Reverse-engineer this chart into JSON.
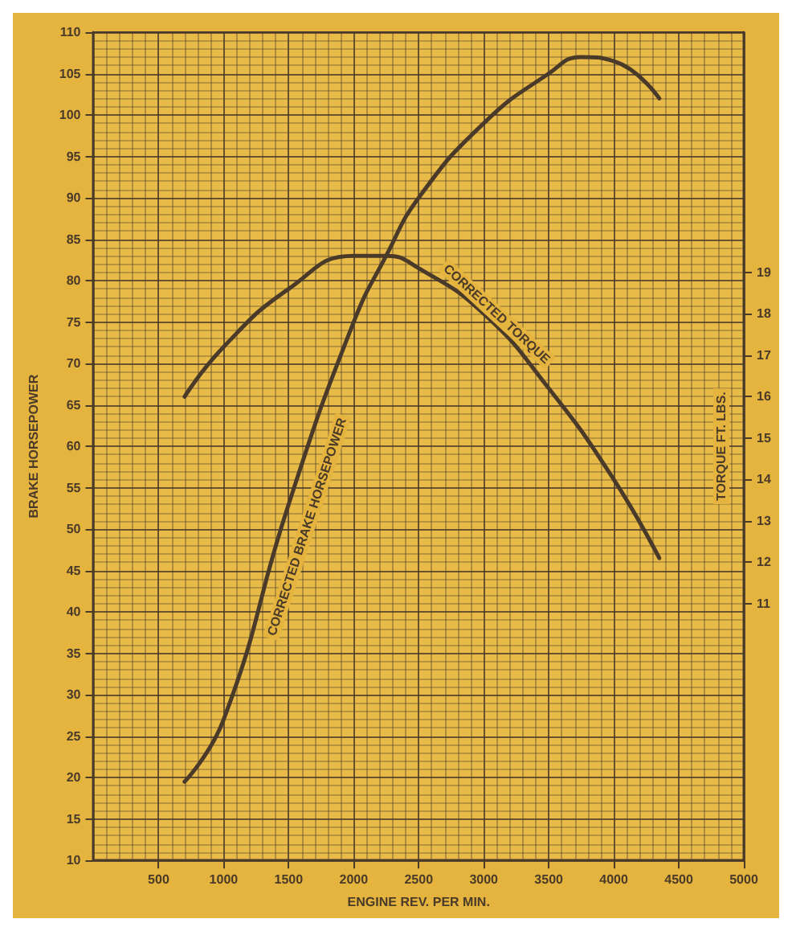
{
  "chart_data": {
    "type": "line",
    "xlabel": "ENGINE REV. PER MIN.",
    "ylabel": "BRAKE HORSEPOWER",
    "y2label": "TORQUE FT. LBS.",
    "xlim": [
      0,
      5000
    ],
    "xticks": [
      500,
      1000,
      1500,
      2000,
      2500,
      3000,
      3500,
      4000,
      4500,
      5000
    ],
    "ylim": [
      10,
      110
    ],
    "yticks": [
      10,
      15,
      20,
      25,
      30,
      35,
      40,
      45,
      50,
      55,
      60,
      65,
      70,
      75,
      80,
      85,
      90,
      95,
      100,
      105,
      110
    ],
    "y2lim": [
      4.8,
      24.8
    ],
    "y2ticks": [
      11,
      12,
      13,
      14,
      15,
      16,
      17,
      18,
      19
    ],
    "grid": true,
    "legend": false,
    "marker": "none",
    "line_style": "solid",
    "series": [
      {
        "name": "CORRECTED BRAKE HORSEPOWER",
        "color": "#4a3a2a",
        "x": [
          700,
          1000,
          1500,
          2000,
          2250,
          2500,
          3000,
          3500,
          3750,
          4000,
          4350
        ],
        "values": [
          19.5,
          27,
          53,
          75,
          83,
          90,
          99,
          105,
          107,
          106.5,
          102
        ]
      },
      {
        "name": "CORRECTED TORQUE",
        "color": "#4a3a2a",
        "axis": "y2",
        "x": [
          700,
          1000,
          1500,
          2000,
          2250,
          2500,
          3000,
          3500,
          4000,
          4350
        ],
        "values": [
          16.0,
          17.2,
          18.6,
          19.4,
          19.4,
          19.1,
          18.0,
          16.2,
          14.0,
          12.1
        ]
      }
    ]
  }
}
